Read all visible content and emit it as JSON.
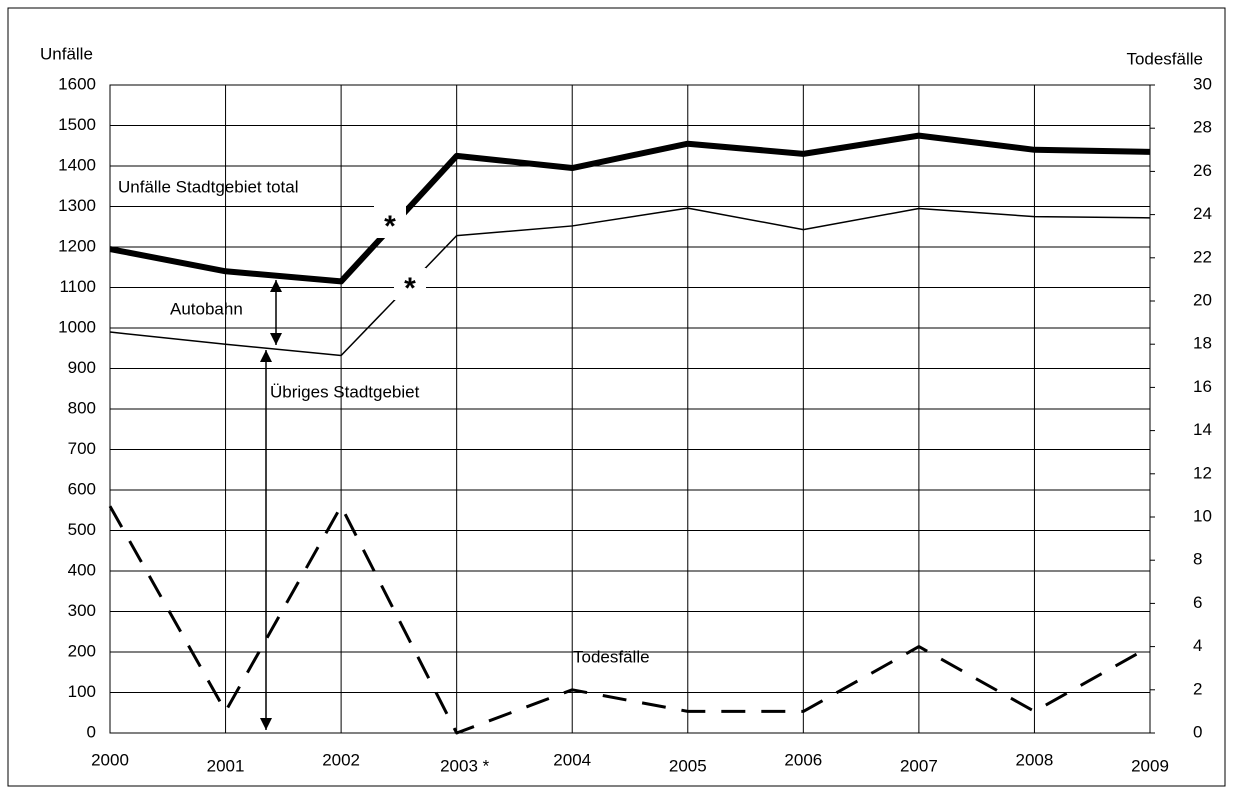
{
  "chart_data": {
    "type": "line",
    "categories": [
      "2000",
      "2001",
      "2002",
      "2003 *",
      "2004",
      "2005",
      "2006",
      "2007",
      "2008",
      "2009"
    ],
    "y_label": "Unfälle",
    "y2_label": "Todesfälle",
    "ylim": [
      0,
      1600
    ],
    "yticks": [
      0,
      100,
      200,
      300,
      400,
      500,
      600,
      700,
      800,
      900,
      1000,
      1100,
      1200,
      1300,
      1400,
      1500,
      1600
    ],
    "y2lim": [
      0,
      30
    ],
    "y2ticks": [
      0,
      2,
      4,
      6,
      8,
      10,
      12,
      14,
      16,
      18,
      20,
      22,
      24,
      26,
      28,
      30
    ],
    "grid": true,
    "series": [
      {
        "name": "Unfälle Stadtgebiet total",
        "color": "#000000",
        "line_width": 6,
        "dash": "none",
        "values": [
          1195,
          1140,
          1115,
          1425,
          1395,
          1455,
          1430,
          1475,
          1440,
          1435
        ]
      },
      {
        "name": "Übriges Stadtgebiet",
        "color": "#000000",
        "line_width": 1.5,
        "dash": "none",
        "values": [
          990,
          960,
          932,
          1228,
          1252,
          1296,
          1243,
          1295,
          1275,
          1272
        ]
      },
      {
        "name": "Todesfälle",
        "color": "#000000",
        "line_width": 3,
        "dash": "24 16",
        "axis": "y2",
        "values": [
          10.5,
          1,
          10.5,
          0,
          2,
          1,
          1,
          4,
          1,
          4
        ]
      }
    ],
    "annotations": [
      "Autobahn",
      "*",
      "*"
    ]
  }
}
